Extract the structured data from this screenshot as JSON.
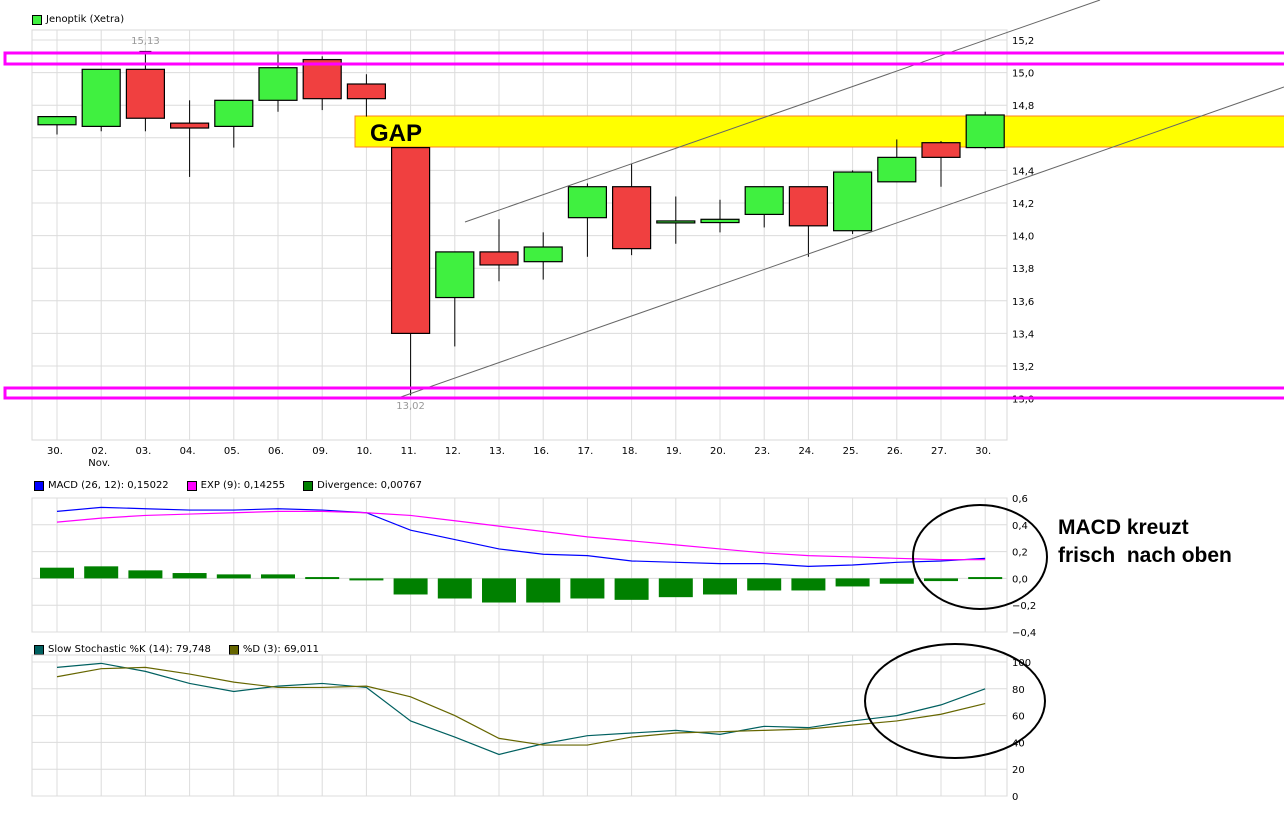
{
  "chart_data": [
    {
      "type": "candlestick",
      "legend": "Jenoptik (Xetra)",
      "categories": [
        "30.",
        "02.",
        "03.",
        "04.",
        "05.",
        "06.",
        "09.",
        "10.",
        "11.",
        "12.",
        "13.",
        "16.",
        "17.",
        "18.",
        "19.",
        "20.",
        "23.",
        "24.",
        "25.",
        "26.",
        "27.",
        "30."
      ],
      "category_sublabels": {
        "1": "Nov."
      },
      "ohlc": [
        [
          14.68,
          14.73,
          14.62,
          14.73
        ],
        [
          14.67,
          15.02,
          14.64,
          15.02
        ],
        [
          15.02,
          15.13,
          14.64,
          14.72
        ],
        [
          14.69,
          14.83,
          14.36,
          14.66
        ],
        [
          14.67,
          14.83,
          14.54,
          14.83
        ],
        [
          14.83,
          15.12,
          14.76,
          15.03
        ],
        [
          15.08,
          15.1,
          14.77,
          14.84
        ],
        [
          14.93,
          14.99,
          14.73,
          14.84
        ],
        [
          14.54,
          14.54,
          13.02,
          13.4
        ],
        [
          13.62,
          13.9,
          13.32,
          13.9
        ],
        [
          13.9,
          14.1,
          13.72,
          13.82
        ],
        [
          13.84,
          14.02,
          13.73,
          13.93
        ],
        [
          14.11,
          14.32,
          13.87,
          14.3
        ],
        [
          14.3,
          14.44,
          13.88,
          13.92
        ],
        [
          14.09,
          14.24,
          13.95,
          14.09
        ],
        [
          14.08,
          14.22,
          14.02,
          14.1
        ],
        [
          14.13,
          14.3,
          14.05,
          14.3
        ],
        [
          14.3,
          14.3,
          13.87,
          14.06
        ],
        [
          14.03,
          14.4,
          14.01,
          14.39
        ],
        [
          14.33,
          14.59,
          14.33,
          14.48
        ],
        [
          14.57,
          14.58,
          14.3,
          14.48
        ],
        [
          14.54,
          14.76,
          14.53,
          14.74
        ]
      ],
      "ylim": [
        12.8,
        15.2
      ],
      "yticks": [
        "15,2",
        "15,0",
        "14,8",
        "14,6",
        "14,4",
        "14,2",
        "14,0",
        "13,8",
        "13,6",
        "13,4",
        "13,2",
        "13,0"
      ],
      "annotations": {
        "high_label": "15,13",
        "low_label": "13,02",
        "gap_label": "GAP"
      },
      "colors": {
        "up": "#40f040",
        "down": "#f04040",
        "band": "#ff00ff",
        "gap": "#ffff00"
      },
      "grid": true
    },
    {
      "type": "line+bar",
      "series": [
        {
          "name": "MACD (26, 12): 0,15022",
          "color": "#0000ff",
          "values": [
            0.5,
            0.53,
            0.52,
            0.51,
            0.51,
            0.52,
            0.51,
            0.49,
            0.36,
            0.29,
            0.22,
            0.18,
            0.17,
            0.13,
            0.12,
            0.11,
            0.11,
            0.09,
            0.1,
            0.12,
            0.13,
            0.15
          ]
        },
        {
          "name": "EXP (9): 0,14255",
          "color": "#ff00ff",
          "values": [
            0.42,
            0.45,
            0.47,
            0.48,
            0.49,
            0.5,
            0.5,
            0.49,
            0.47,
            0.43,
            0.39,
            0.35,
            0.31,
            0.28,
            0.25,
            0.22,
            0.19,
            0.17,
            0.16,
            0.15,
            0.14,
            0.14
          ]
        },
        {
          "name": "Divergence: 0,00767",
          "color": "#008000",
          "kind": "bar",
          "values": [
            0.08,
            0.09,
            0.06,
            0.04,
            0.03,
            0.03,
            0.01,
            -0.01,
            -0.12,
            -0.15,
            -0.18,
            -0.18,
            -0.15,
            -0.16,
            -0.14,
            -0.12,
            -0.09,
            -0.09,
            -0.06,
            -0.04,
            -0.02,
            0.01
          ]
        }
      ],
      "ylim": [
        -0.4,
        0.6
      ],
      "yticks": [
        "0,6",
        "0,4",
        "0,2",
        "0,0",
        "-0,2",
        "-0,4"
      ],
      "annotation": "MACD kreuzt\nfrisch  nach oben",
      "grid": true
    },
    {
      "type": "line",
      "series": [
        {
          "name": "Slow Stochastic %K (14): 79,748",
          "color": "#006060",
          "values": [
            96,
            99,
            93,
            84,
            78,
            82,
            84,
            81,
            56,
            44,
            31,
            39,
            45,
            47,
            49,
            46,
            52,
            51,
            56,
            60,
            68,
            80
          ]
        },
        {
          "name": "%D (3): 69,011",
          "color": "#666600",
          "values": [
            89,
            95,
            96,
            91,
            85,
            81,
            81,
            82,
            74,
            60,
            43,
            38,
            38,
            44,
            47,
            48,
            49,
            50,
            53,
            56,
            61,
            69
          ]
        }
      ],
      "ylim": [
        0,
        100
      ],
      "yticks": [
        "100",
        "80",
        "60",
        "40",
        "20",
        "0"
      ],
      "grid": true
    }
  ]
}
